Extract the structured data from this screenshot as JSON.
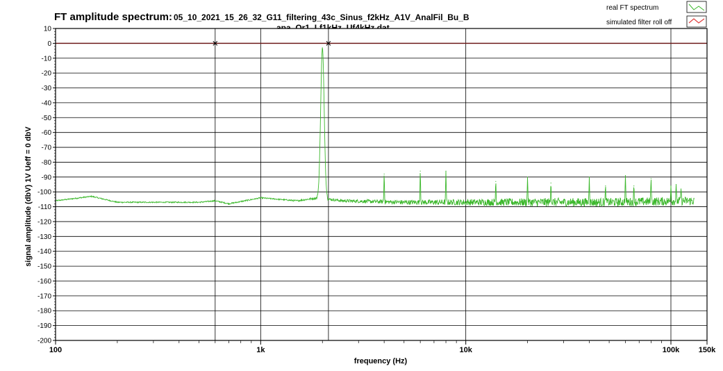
{
  "chart_data": {
    "type": "line",
    "title": "FT amplitude spectrum:",
    "subtitle_line1": "05_10_2021_15_26_32_G11_filtering_43c_Sinus_f2kHz_A1V_AnalFil_Bu_B",
    "subtitle_line2": "apa_Or1_Lf1kHz_Uf4kHz.dat",
    "xlabel": "frequency (Hz)",
    "ylabel": "signal amplitude (dbV)   1V Ueff = 0 dbV",
    "x_scale": "log",
    "xlim": [
      100,
      150000
    ],
    "ylim": [
      -200,
      10
    ],
    "x_tick_labels": [
      {
        "value": 100,
        "label": "100"
      },
      {
        "value": 1000,
        "label": "1k"
      },
      {
        "value": 10000,
        "label": "10k"
      },
      {
        "value": 100000,
        "label": "100k"
      },
      {
        "value": 150000,
        "label": "150k"
      }
    ],
    "x_major_grid": [
      100,
      1000,
      10000,
      100000,
      150000
    ],
    "x_minor_grid": [
      600,
      2140
    ],
    "y_ticks": [
      10,
      0,
      -10,
      -20,
      -30,
      -40,
      -50,
      -60,
      -70,
      -80,
      -90,
      -100,
      -110,
      -120,
      -130,
      -140,
      -150,
      -160,
      -170,
      -180,
      -190,
      -200
    ],
    "y_tick_labels": [
      "10",
      "0",
      "-10",
      "-20",
      "-30",
      "-40",
      "-50",
      "-60",
      "-70",
      "-80",
      "-90",
      "-100",
      "-110",
      "-120",
      "-130",
      "-140",
      "-150",
      "-160",
      "-170",
      "-180",
      "-190",
      "-200"
    ],
    "grid": true,
    "legend_position": "top-right",
    "series": [
      {
        "name": "real FT spectrum",
        "color": "#3cb82c",
        "baseline": [
          [
            100,
            -106
          ],
          [
            150,
            -103
          ],
          [
            200,
            -107
          ],
          [
            300,
            -107
          ],
          [
            500,
            -107
          ],
          [
            600,
            -106
          ],
          [
            700,
            -108
          ],
          [
            1000,
            -104
          ],
          [
            1500,
            -106
          ],
          [
            1900,
            -104
          ],
          [
            2500,
            -106
          ],
          [
            5000,
            -107
          ],
          [
            10000,
            -107
          ],
          [
            50000,
            -107
          ],
          [
            130000,
            -106
          ]
        ],
        "noise_band_dbV": 2.5,
        "peaks": [
          {
            "x": 2000,
            "y": -3
          },
          {
            "x": 4000,
            "y": -88
          },
          {
            "x": 6000,
            "y": -86
          },
          {
            "x": 8000,
            "y": -86
          },
          {
            "x": 14000,
            "y": -93
          },
          {
            "x": 20000,
            "y": -90
          },
          {
            "x": 26000,
            "y": -94
          },
          {
            "x": 40000,
            "y": -90
          },
          {
            "x": 48000,
            "y": -96
          },
          {
            "x": 60000,
            "y": -89
          },
          {
            "x": 66000,
            "y": -96
          },
          {
            "x": 80000,
            "y": -91
          },
          {
            "x": 100000,
            "y": -96
          },
          {
            "x": 106000,
            "y": -95
          },
          {
            "x": 112000,
            "y": -98
          }
        ],
        "x_end": 130000
      },
      {
        "name": "simulated filter roll off",
        "color": "#e03c3c",
        "points": [
          [
            100,
            0
          ],
          [
            150000,
            0
          ]
        ]
      }
    ],
    "cursor_markers": [
      {
        "x": 600,
        "y": 0
      },
      {
        "x": 2140,
        "y": 0
      }
    ]
  }
}
